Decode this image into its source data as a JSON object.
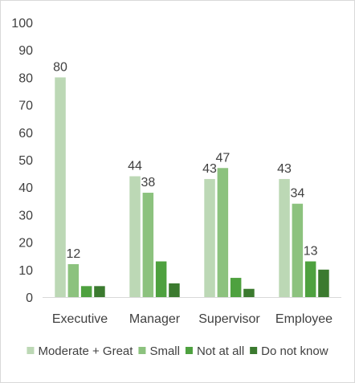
{
  "chart_data": {
    "type": "bar",
    "title": "",
    "xlabel": "",
    "ylabel": "",
    "categories": [
      "Executive",
      "Manager",
      "Supervisor",
      "Employee"
    ],
    "ylim": [
      0,
      100
    ],
    "yticks": [
      0,
      10,
      20,
      30,
      40,
      50,
      60,
      70,
      80,
      90,
      100
    ],
    "grid": false,
    "legend_position": "bottom",
    "series": [
      {
        "name": "Moderate + Great",
        "color": "#bcd8b5",
        "values": [
          80,
          44,
          43,
          43
        ],
        "labels": [
          "80",
          "44",
          "43",
          "43"
        ]
      },
      {
        "name": "Small",
        "color": "#8cc27e",
        "values": [
          12,
          38,
          47,
          34
        ],
        "labels": [
          "12",
          "38",
          "47",
          "34"
        ]
      },
      {
        "name": "Not at all",
        "color": "#4ea13f",
        "values": [
          4,
          13,
          7,
          13
        ],
        "labels": [
          "",
          "",
          "",
          "13"
        ]
      },
      {
        "name": "Do not know",
        "color": "#3b7a2f",
        "values": [
          4,
          5,
          3,
          10
        ],
        "labels": [
          "",
          "",
          "",
          ""
        ]
      }
    ]
  }
}
